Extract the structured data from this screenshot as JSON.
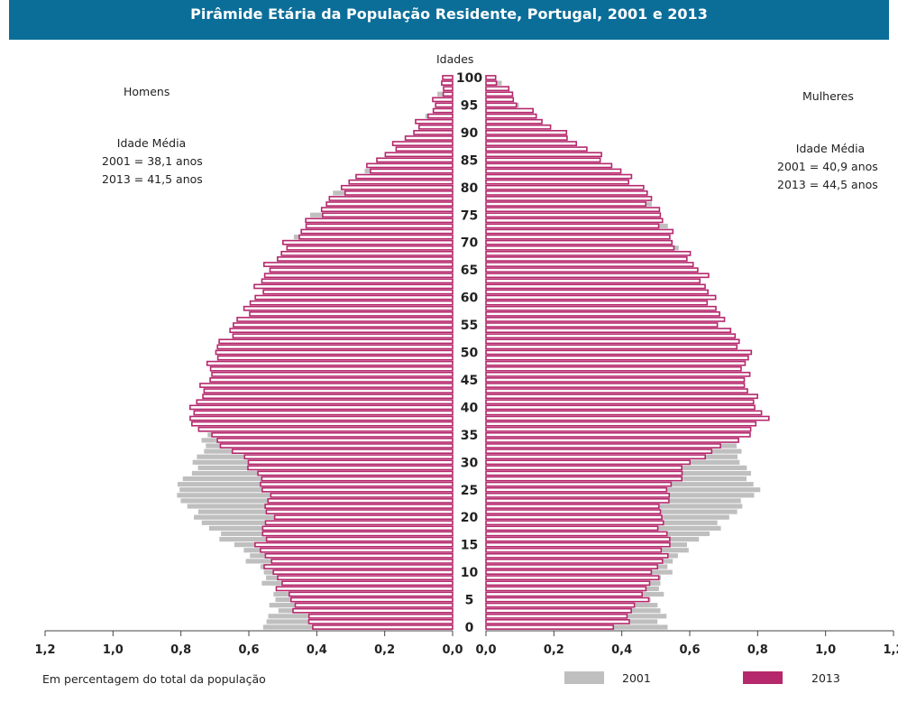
{
  "title": "Pirâmide Etária da População Residente, Portugal, 2001 e 2013",
  "age_axis_title": "Idades",
  "men": {
    "label": "Homens",
    "avg_title": "Idade Média",
    "avg_2001": "2001 = 38,1 anos",
    "avg_2013": "2013 = 41,5 anos"
  },
  "women": {
    "label": "Mulheres",
    "avg_title": "Idade Média",
    "avg_2001": "2001 = 40,9 anos",
    "avg_2013": "2013 = 44,5 anos"
  },
  "xlabel": "Em percentagem do total da população",
  "legend": {
    "item_2001": "2001",
    "item_2013": "2013"
  },
  "colors": {
    "title_bg": "#0b6e99",
    "s2001": "#bfbfbf",
    "s2013_border": "#b5286c",
    "s2013_fill": "#ffffff"
  },
  "chart_data": {
    "type": "bar",
    "orientation": "population-pyramid",
    "y_axis": "age",
    "age_range": [
      0,
      100
    ],
    "age_ticks": [
      "0",
      "5",
      "10",
      "15",
      "20",
      "25",
      "30",
      "35",
      "40",
      "45",
      "50",
      "55",
      "60",
      "65",
      "70",
      "75",
      "80",
      "85",
      "90",
      "95",
      "100"
    ],
    "x_ticks_left": [
      "1,2",
      "1,0",
      "0,8",
      "0,6",
      "0,4",
      "0,2",
      "0,0"
    ],
    "x_ticks_right": [
      "0,0",
      "0,2",
      "0,4",
      "0,6",
      "0,8",
      "1,0",
      "1,2"
    ],
    "xlim": [
      0,
      1.2
    ],
    "men_anchors_2001": [
      [
        0,
        0.55
      ],
      [
        5,
        0.52
      ],
      [
        10,
        0.56
      ],
      [
        14,
        0.62
      ],
      [
        18,
        0.72
      ],
      [
        22,
        0.78
      ],
      [
        25,
        0.82
      ],
      [
        28,
        0.77
      ],
      [
        32,
        0.74
      ],
      [
        35,
        0.72
      ],
      [
        40,
        0.72
      ],
      [
        45,
        0.7
      ],
      [
        50,
        0.66
      ],
      [
        55,
        0.6
      ],
      [
        60,
        0.55
      ],
      [
        65,
        0.5
      ],
      [
        70,
        0.46
      ],
      [
        75,
        0.4
      ],
      [
        80,
        0.32
      ],
      [
        85,
        0.2
      ],
      [
        90,
        0.1
      ],
      [
        95,
        0.04
      ],
      [
        100,
        0.01
      ]
    ],
    "men_anchors_2013": [
      [
        0,
        0.41
      ],
      [
        5,
        0.48
      ],
      [
        10,
        0.53
      ],
      [
        15,
        0.57
      ],
      [
        20,
        0.54
      ],
      [
        25,
        0.55
      ],
      [
        30,
        0.6
      ],
      [
        35,
        0.72
      ],
      [
        38,
        0.78
      ],
      [
        40,
        0.76
      ],
      [
        45,
        0.72
      ],
      [
        50,
        0.7
      ],
      [
        55,
        0.64
      ],
      [
        60,
        0.58
      ],
      [
        65,
        0.55
      ],
      [
        70,
        0.48
      ],
      [
        75,
        0.4
      ],
      [
        80,
        0.32
      ],
      [
        85,
        0.22
      ],
      [
        90,
        0.12
      ],
      [
        95,
        0.05
      ],
      [
        100,
        0.02
      ]
    ],
    "women_anchors_2001": [
      [
        0,
        0.53
      ],
      [
        5,
        0.5
      ],
      [
        10,
        0.53
      ],
      [
        14,
        0.58
      ],
      [
        18,
        0.68
      ],
      [
        22,
        0.75
      ],
      [
        25,
        0.8
      ],
      [
        28,
        0.77
      ],
      [
        32,
        0.74
      ],
      [
        35,
        0.73
      ],
      [
        40,
        0.74
      ],
      [
        45,
        0.73
      ],
      [
        50,
        0.7
      ],
      [
        55,
        0.67
      ],
      [
        60,
        0.63
      ],
      [
        65,
        0.58
      ],
      [
        70,
        0.54
      ],
      [
        75,
        0.5
      ],
      [
        80,
        0.43
      ],
      [
        85,
        0.31
      ],
      [
        90,
        0.18
      ],
      [
        95,
        0.08
      ],
      [
        100,
        0.02
      ]
    ],
    "women_anchors_2013": [
      [
        0,
        0.39
      ],
      [
        5,
        0.46
      ],
      [
        10,
        0.5
      ],
      [
        15,
        0.54
      ],
      [
        20,
        0.51
      ],
      [
        25,
        0.54
      ],
      [
        30,
        0.6
      ],
      [
        35,
        0.77
      ],
      [
        38,
        0.82
      ],
      [
        40,
        0.8
      ],
      [
        45,
        0.76
      ],
      [
        50,
        0.77
      ],
      [
        55,
        0.7
      ],
      [
        60,
        0.66
      ],
      [
        65,
        0.63
      ],
      [
        70,
        0.55
      ],
      [
        75,
        0.51
      ],
      [
        80,
        0.46
      ],
      [
        85,
        0.35
      ],
      [
        90,
        0.22
      ],
      [
        95,
        0.1
      ],
      [
        100,
        0.03
      ]
    ]
  }
}
